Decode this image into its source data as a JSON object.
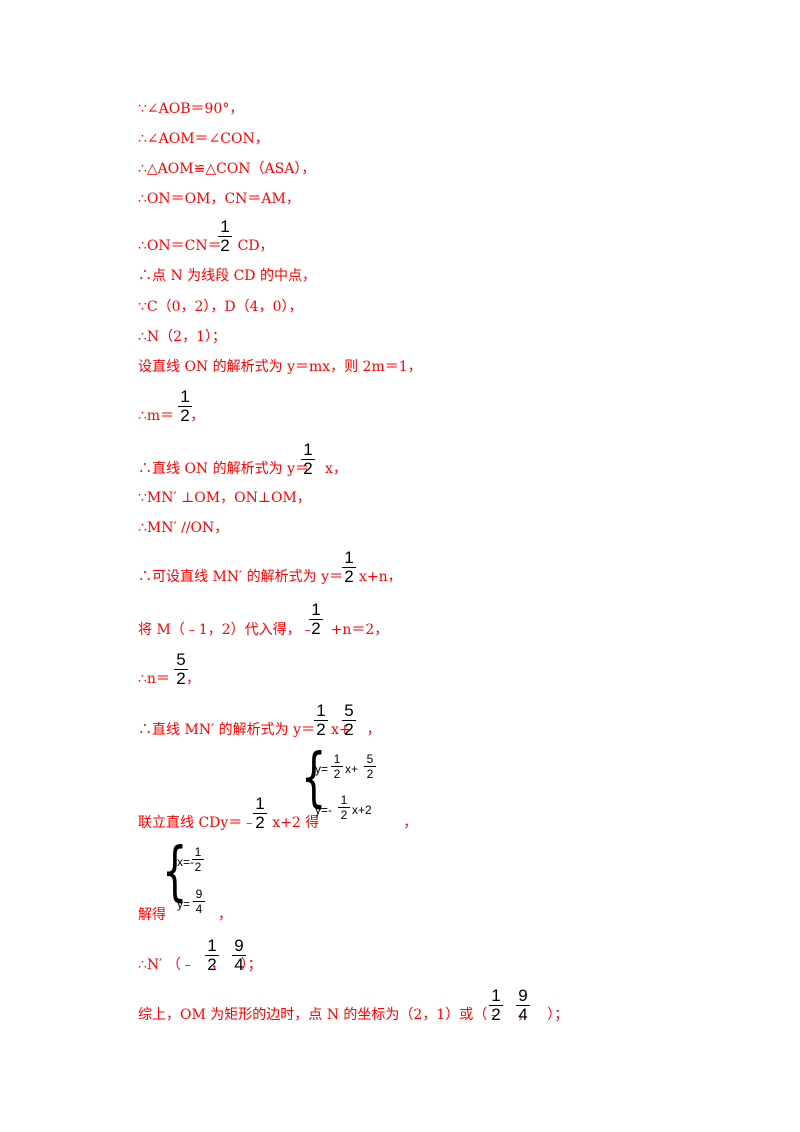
{
  "lines": [
    {
      "id": "l1",
      "text": "∵∠AOB＝90°，"
    },
    {
      "id": "l2",
      "text": "∴∠AOM＝∠CON，"
    },
    {
      "id": "l3",
      "text": "∴△AOM≌△CON（ASA），"
    },
    {
      "id": "l4",
      "text": "∴ON＝OM，CN＝AM，"
    },
    {
      "id": "l5a",
      "text": "∴ON＝CN＝"
    },
    {
      "id": "l5b",
      "text": "CD，"
    },
    {
      "id": "l6",
      "text": "∴点 N 为线段 CD 的中点，"
    },
    {
      "id": "l7",
      "text": "∵C（0，2），D（4，0），"
    },
    {
      "id": "l8",
      "text": "∴N（2，1）；"
    },
    {
      "id": "l9",
      "text": "设直线 ON 的解析式为 y＝mx，则 2m＝1，"
    },
    {
      "id": "l10a",
      "text": "∴m＝"
    },
    {
      "id": "l10b",
      "text": "，"
    },
    {
      "id": "l11a",
      "text": "∴直线 ON 的解析式为 y＝"
    },
    {
      "id": "l11b",
      "text": "x，"
    },
    {
      "id": "l12",
      "text": "∵MN′ ⊥OM，ON⊥OM，"
    },
    {
      "id": "l13",
      "text": "∴MN′ //ON，"
    },
    {
      "id": "l14a",
      "text": "∴可设直线 MN′ 的解析式为 y＝"
    },
    {
      "id": "l14b",
      "text": "x+n，"
    },
    {
      "id": "l15a",
      "text": "将 M（﹣1，2）代入得，﹣"
    },
    {
      "id": "l15b",
      "text": "+n＝2，"
    },
    {
      "id": "l16a",
      "text": "∴n＝"
    },
    {
      "id": "l16b",
      "text": "，"
    },
    {
      "id": "l17a",
      "text": "∴直线 MN′ 的解析式为 y＝"
    },
    {
      "id": "l17b",
      "text": "x+"
    },
    {
      "id": "l17c",
      "text": "，"
    },
    {
      "id": "l18a",
      "text": "联立直线 CDy＝﹣"
    },
    {
      "id": "l18b",
      "text": "x+2 得"
    },
    {
      "id": "l18c",
      "text": "，"
    },
    {
      "id": "l19a",
      "text": "解得"
    },
    {
      "id": "l19b",
      "text": "，"
    },
    {
      "id": "l20a",
      "text": "∴N′ （﹣"
    },
    {
      "id": "l20b",
      "text": "，"
    },
    {
      "id": "l20c",
      "text": "）；"
    },
    {
      "id": "l21a",
      "text": "综上，OM 为矩形的边时，点 N 的坐标为（2，1）或（﹣"
    },
    {
      "id": "l21b",
      "text": "，"
    },
    {
      "id": "l21c",
      "text": "）；"
    }
  ],
  "fractions": {
    "one": "1",
    "two": "2",
    "five": "5",
    "nine": "9",
    "four": "4"
  },
  "system1": {
    "eq1_lhs": "y=",
    "eq1_mid": "x+",
    "eq2_lhs": "y=-",
    "eq2_rhs": "x+2"
  },
  "system2": {
    "eq1_lhs": "x=-",
    "eq2_lhs": "y="
  }
}
